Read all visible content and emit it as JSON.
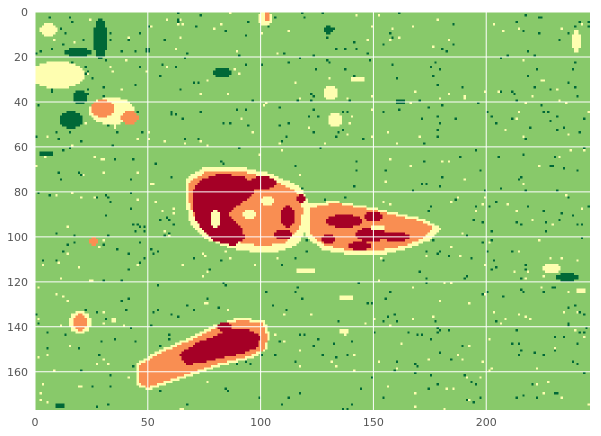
{
  "chart_data": {
    "type": "heatmap",
    "title": "",
    "xlabel": "",
    "ylabel": "",
    "xlim": [
      0,
      246
    ],
    "ylim": [
      177,
      0
    ],
    "x_ticks": [
      0,
      50,
      100,
      150,
      200
    ],
    "y_ticks": [
      0,
      20,
      40,
      60,
      80,
      100,
      120,
      140,
      160
    ],
    "x_tick_labels": [
      "0",
      "50",
      "100",
      "150",
      "200"
    ],
    "y_tick_labels": [
      "0",
      "20",
      "40",
      "60",
      "80",
      "100",
      "120",
      "140",
      "160"
    ],
    "grid": true,
    "colormap": "RdYlGn (reversed, 5 classes)",
    "class_colors": [
      "#006837",
      "#88c96a",
      "#fefeb0",
      "#f98e52",
      "#a50026"
    ],
    "background_class": 1,
    "regions": [
      {
        "class": 2,
        "type": "ellipse",
        "cx": 10,
        "cy": 28,
        "rx": 12,
        "ry": 6
      },
      {
        "class": 2,
        "type": "ellipse",
        "cx": 6,
        "cy": 8,
        "rx": 4,
        "ry": 3
      },
      {
        "class": 2,
        "type": "ellipse",
        "cx": 34,
        "cy": 44,
        "rx": 10,
        "ry": 6
      },
      {
        "class": 3,
        "type": "ellipse",
        "cx": 30,
        "cy": 43,
        "rx": 5,
        "ry": 4
      },
      {
        "class": 3,
        "type": "ellipse",
        "cx": 42,
        "cy": 47,
        "rx": 4,
        "ry": 3
      },
      {
        "class": 0,
        "type": "ellipse",
        "cx": 16,
        "cy": 48,
        "rx": 5,
        "ry": 4
      },
      {
        "class": 0,
        "type": "ellipse",
        "cx": 20,
        "cy": 38,
        "rx": 3,
        "ry": 3
      },
      {
        "class": 0,
        "type": "ellipse",
        "cx": 19,
        "cy": 18,
        "rx": 6,
        "ry": 2
      },
      {
        "class": 0,
        "type": "ellipse",
        "cx": 29,
        "cy": 12,
        "rx": 3,
        "ry": 9
      },
      {
        "class": 0,
        "type": "ellipse",
        "cx": 83,
        "cy": 27,
        "rx": 4,
        "ry": 2
      },
      {
        "class": 0,
        "type": "ellipse",
        "cx": 5,
        "cy": 63,
        "rx": 4,
        "ry": 1
      },
      {
        "class": 0,
        "type": "ellipse",
        "cx": 236,
        "cy": 118,
        "rx": 5,
        "ry": 2
      },
      {
        "class": 0,
        "type": "ellipse",
        "cx": 130,
        "cy": 8,
        "rx": 2,
        "ry": 2
      },
      {
        "class": 0,
        "type": "ellipse",
        "cx": 50,
        "cy": 17,
        "rx": 1,
        "ry": 1
      },
      {
        "class": 0,
        "type": "ellipse",
        "cx": 162,
        "cy": 40,
        "rx": 2,
        "ry": 1
      },
      {
        "class": 2,
        "type": "ellipse",
        "cx": 143,
        "cy": 30,
        "rx": 4,
        "ry": 1
      },
      {
        "class": 2,
        "type": "ellipse",
        "cx": 131,
        "cy": 36,
        "rx": 3,
        "ry": 3
      },
      {
        "class": 2,
        "type": "ellipse",
        "cx": 133,
        "cy": 48,
        "rx": 3,
        "ry": 3
      },
      {
        "class": 2,
        "type": "ellipse",
        "cx": 102,
        "cy": 3,
        "rx": 3,
        "ry": 3
      },
      {
        "class": 3,
        "type": "ellipse",
        "cx": 103,
        "cy": 2,
        "rx": 1,
        "ry": 2
      },
      {
        "class": 2,
        "type": "ellipse",
        "cx": 240,
        "cy": 13,
        "rx": 2,
        "ry": 5
      },
      {
        "class": 2,
        "type": "ellipse",
        "cx": 120,
        "cy": 115,
        "rx": 5,
        "ry": 1
      },
      {
        "class": 2,
        "type": "ellipse",
        "cx": 138,
        "cy": 127,
        "rx": 3,
        "ry": 1
      },
      {
        "class": 2,
        "type": "ellipse",
        "cx": 137,
        "cy": 142,
        "rx": 2,
        "ry": 1
      },
      {
        "class": 2,
        "type": "ellipse",
        "cx": 229,
        "cy": 114,
        "rx": 4,
        "ry": 2
      },
      {
        "class": 2,
        "type": "ellipse",
        "cx": 242,
        "cy": 124,
        "rx": 2,
        "ry": 1
      },
      {
        "class": 3,
        "type": "ellipse",
        "cx": 26,
        "cy": 102,
        "rx": 2,
        "ry": 2
      },
      {
        "class": 2,
        "type": "ellipse",
        "cx": 20,
        "cy": 138,
        "rx": 5,
        "ry": 5
      },
      {
        "class": 3,
        "type": "ellipse",
        "cx": 20,
        "cy": 138,
        "rx": 3,
        "ry": 4
      },
      {
        "class": 2,
        "type": "ellipse",
        "cx": 35,
        "cy": 137,
        "rx": 1,
        "ry": 1
      },
      {
        "class": 2,
        "type": "polygon",
        "points": [
          [
            67,
            74
          ],
          [
            75,
            69
          ],
          [
            92,
            69
          ],
          [
            105,
            72
          ],
          [
            118,
            78
          ],
          [
            122,
            86
          ],
          [
            121,
            96
          ],
          [
            116,
            104
          ],
          [
            106,
            107
          ],
          [
            98,
            107
          ],
          [
            86,
            105
          ],
          [
            76,
            101
          ],
          [
            69,
            95
          ],
          [
            67,
            85
          ]
        ]
      },
      {
        "class": 3,
        "type": "polygon",
        "points": [
          [
            68,
            76
          ],
          [
            76,
            71
          ],
          [
            92,
            71
          ],
          [
            104,
            74
          ],
          [
            116,
            80
          ],
          [
            119,
            88
          ],
          [
            117,
            97
          ],
          [
            110,
            103
          ],
          [
            100,
            104
          ],
          [
            88,
            102
          ],
          [
            78,
            98
          ],
          [
            71,
            92
          ],
          [
            68,
            84
          ]
        ]
      },
      {
        "class": 2,
        "type": "polygon",
        "points": [
          [
            120,
            86
          ],
          [
            132,
            84
          ],
          [
            150,
            87
          ],
          [
            163,
            90
          ],
          [
            172,
            92
          ],
          [
            180,
            96
          ],
          [
            176,
            101
          ],
          [
            166,
            105
          ],
          [
            154,
            108
          ],
          [
            140,
            108
          ],
          [
            128,
            106
          ],
          [
            120,
            100
          ]
        ]
      },
      {
        "class": 3,
        "type": "polygon",
        "points": [
          [
            122,
            87
          ],
          [
            133,
            85
          ],
          [
            150,
            88
          ],
          [
            162,
            91
          ],
          [
            171,
            93
          ],
          [
            177,
            96
          ],
          [
            173,
            100
          ],
          [
            164,
            104
          ],
          [
            152,
            106
          ],
          [
            140,
            106
          ],
          [
            129,
            104
          ],
          [
            122,
            99
          ]
        ]
      },
      {
        "class": 4,
        "type": "polygon",
        "points": [
          [
            70,
            80
          ],
          [
            73,
            75
          ],
          [
            82,
            72
          ],
          [
            92,
            73
          ],
          [
            98,
            78
          ],
          [
            96,
            82
          ],
          [
            90,
            86
          ],
          [
            86,
            90
          ],
          [
            92,
            96
          ],
          [
            93,
            101
          ],
          [
            88,
            104
          ],
          [
            80,
            102
          ],
          [
            75,
            98
          ],
          [
            71,
            92
          ],
          [
            70,
            86
          ]
        ]
      },
      {
        "class": 4,
        "type": "ellipse",
        "cx": 101,
        "cy": 76,
        "rx": 6,
        "ry": 3
      },
      {
        "class": 4,
        "type": "ellipse",
        "cx": 112,
        "cy": 91,
        "rx": 3,
        "ry": 5
      },
      {
        "class": 4,
        "type": "ellipse",
        "cx": 110,
        "cy": 99,
        "rx": 4,
        "ry": 2
      },
      {
        "class": 4,
        "type": "ellipse",
        "cx": 118,
        "cy": 83,
        "rx": 2,
        "ry": 2
      },
      {
        "class": 4,
        "type": "ellipse",
        "cx": 137,
        "cy": 93,
        "rx": 8,
        "ry": 3
      },
      {
        "class": 4,
        "type": "ellipse",
        "cx": 150,
        "cy": 91,
        "rx": 4,
        "ry": 2
      },
      {
        "class": 4,
        "type": "ellipse",
        "cx": 149,
        "cy": 99,
        "rx": 7,
        "ry": 3
      },
      {
        "class": 4,
        "type": "ellipse",
        "cx": 160,
        "cy": 100,
        "rx": 6,
        "ry": 2
      },
      {
        "class": 4,
        "type": "ellipse",
        "cx": 144,
        "cy": 104,
        "rx": 5,
        "ry": 2
      },
      {
        "class": 4,
        "type": "ellipse",
        "cx": 130,
        "cy": 101,
        "rx": 3,
        "ry": 2
      },
      {
        "class": 2,
        "type": "ellipse",
        "cx": 80,
        "cy": 92,
        "rx": 2,
        "ry": 4
      },
      {
        "class": 2,
        "type": "ellipse",
        "cx": 95,
        "cy": 90,
        "rx": 3,
        "ry": 2
      },
      {
        "class": 2,
        "type": "ellipse",
        "cx": 103,
        "cy": 84,
        "rx": 3,
        "ry": 2
      },
      {
        "class": 2,
        "type": "ellipse",
        "cx": 152,
        "cy": 96,
        "rx": 3,
        "ry": 1
      },
      {
        "class": 2,
        "type": "polygon",
        "points": [
          [
            45,
            156
          ],
          [
            56,
            150
          ],
          [
            68,
            145
          ],
          [
            78,
            140
          ],
          [
            90,
            136
          ],
          [
            102,
            137
          ],
          [
            104,
            143
          ],
          [
            103,
            150
          ],
          [
            96,
            154
          ],
          [
            84,
            157
          ],
          [
            72,
            161
          ],
          [
            60,
            165
          ],
          [
            50,
            168
          ],
          [
            45,
            166
          ]
        ]
      },
      {
        "class": 3,
        "type": "polygon",
        "points": [
          [
            46,
            157
          ],
          [
            57,
            151
          ],
          [
            69,
            146
          ],
          [
            79,
            141
          ],
          [
            90,
            137
          ],
          [
            101,
            138
          ],
          [
            103,
            144
          ],
          [
            102,
            150
          ],
          [
            95,
            153
          ],
          [
            83,
            156
          ],
          [
            71,
            160
          ],
          [
            59,
            164
          ],
          [
            50,
            167
          ],
          [
            46,
            165
          ]
        ]
      },
      {
        "class": 4,
        "type": "polygon",
        "points": [
          [
            64,
            152
          ],
          [
            72,
            147
          ],
          [
            80,
            144
          ],
          [
            86,
            141
          ],
          [
            94,
            141
          ],
          [
            100,
            144
          ],
          [
            99,
            149
          ],
          [
            92,
            152
          ],
          [
            82,
            154
          ],
          [
            74,
            156
          ],
          [
            67,
            157
          ]
        ]
      },
      {
        "class": 4,
        "type": "ellipse",
        "cx": 84,
        "cy": 140,
        "rx": 3,
        "ry": 2
      },
      {
        "class": 0,
        "type": "ellipse",
        "cx": 11,
        "cy": 175,
        "rx": 2,
        "ry": 1
      }
    ]
  }
}
